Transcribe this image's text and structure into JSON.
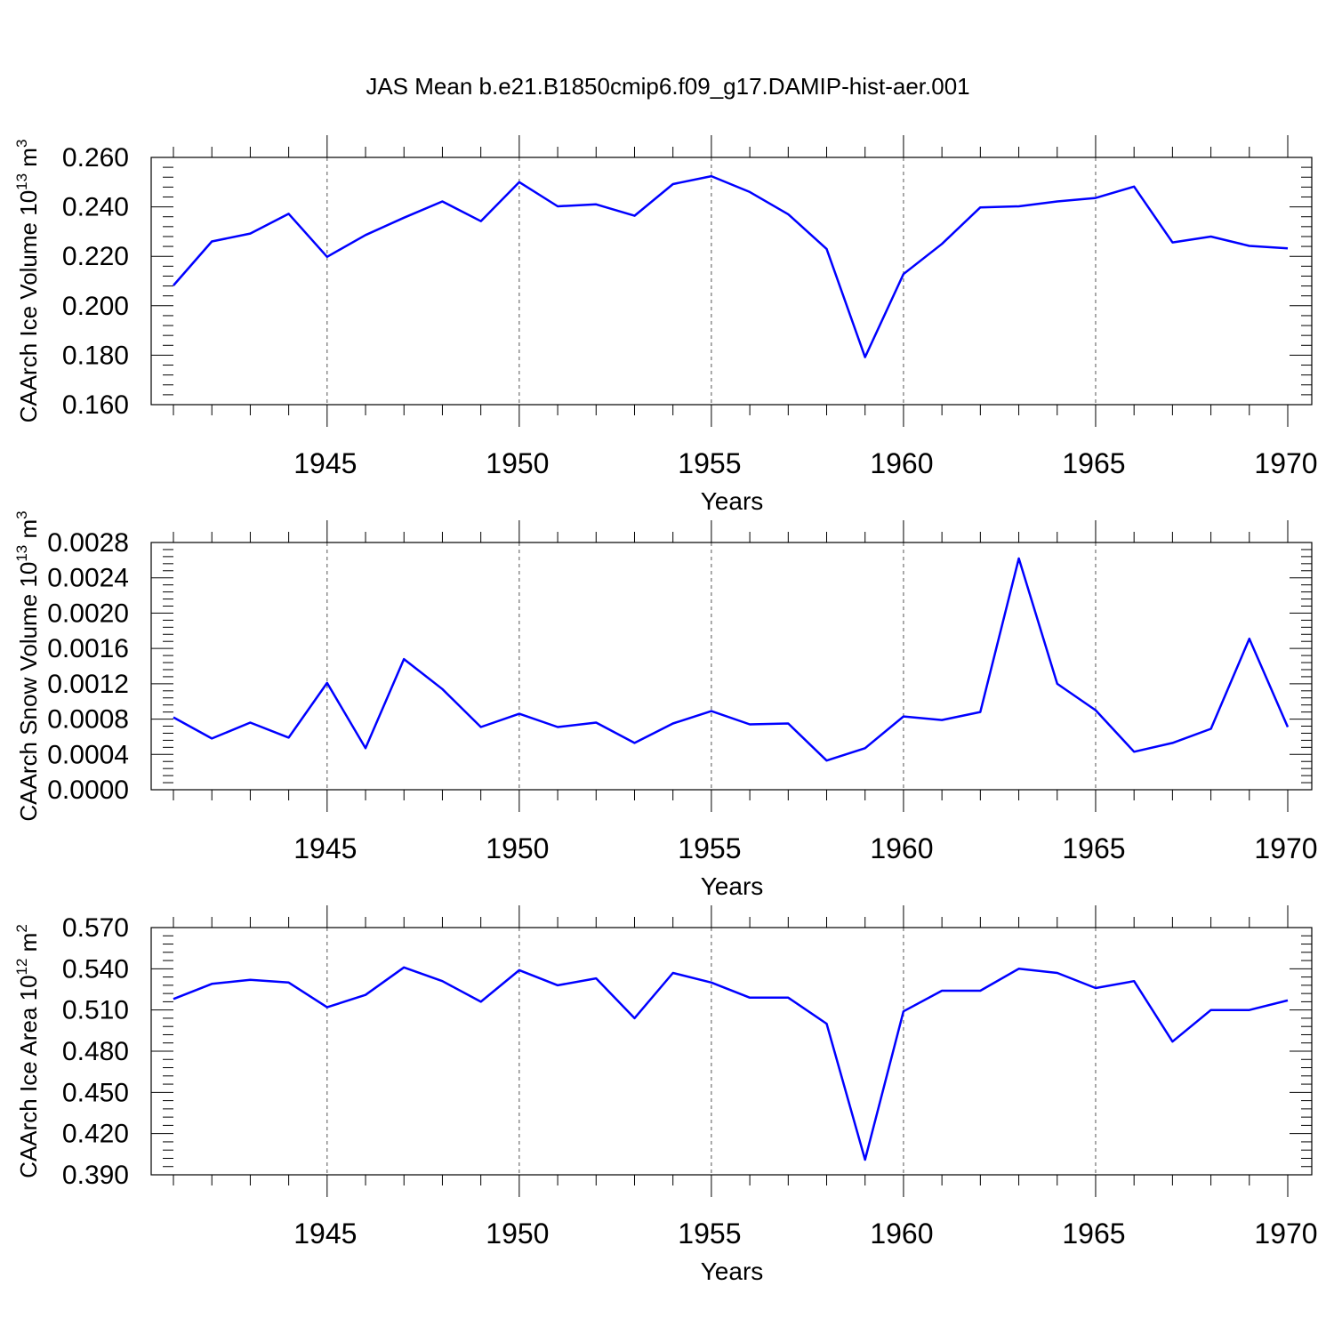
{
  "figure": {
    "title": "JAS Mean b.e21.B1850cmip6.f09_g17.DAMIP-hist-aer.001"
  },
  "chart_data": [
    {
      "type": "line",
      "ylabel_text": "CAArch Ice Volume 10",
      "ylabel_exp": "13",
      "ylabel_unit": " m",
      "ylabel_unit_exp": "3",
      "xlabel": "Years",
      "xlim": [
        1941,
        1970
      ],
      "ylim": [
        0.16,
        0.26
      ],
      "yticks": [
        0.16,
        0.18,
        0.2,
        0.22,
        0.24,
        0.26
      ],
      "ytick_labels": [
        "0.160",
        "0.180",
        "0.200",
        "0.220",
        "0.240",
        "0.260"
      ],
      "xticks": [
        1945,
        1950,
        1955,
        1960,
        1965,
        1970
      ],
      "xtick_labels": [
        "1945",
        "1950",
        "1955",
        "1960",
        "1965",
        "1970"
      ],
      "line_color": "#0000ff",
      "x": [
        1941,
        1942,
        1943,
        1944,
        1945,
        1946,
        1947,
        1948,
        1949,
        1950,
        1951,
        1952,
        1953,
        1954,
        1955,
        1956,
        1957,
        1958,
        1959,
        1960,
        1961,
        1962,
        1963,
        1964,
        1965,
        1966,
        1967,
        1968,
        1969,
        1970
      ],
      "values": [
        0.2082,
        0.226,
        0.2292,
        0.2372,
        0.2198,
        0.2286,
        0.2356,
        0.2422,
        0.2342,
        0.25,
        0.2402,
        0.241,
        0.2364,
        0.2492,
        0.2524,
        0.246,
        0.237,
        0.223,
        0.1792,
        0.2128,
        0.225,
        0.2398,
        0.2402,
        0.2422,
        0.2436,
        0.2482,
        0.2256,
        0.228,
        0.2242,
        0.2232
      ]
    },
    {
      "type": "line",
      "ylabel_text": "CAArch Snow Volume 10",
      "ylabel_exp": "13",
      "ylabel_unit": " m",
      "ylabel_unit_exp": "3",
      "xlabel": "Years",
      "xlim": [
        1941,
        1970
      ],
      "ylim": [
        0.0,
        0.0028
      ],
      "yticks": [
        0.0,
        0.0004,
        0.0008,
        0.0012,
        0.0016,
        0.002,
        0.0024,
        0.0028
      ],
      "ytick_labels": [
        "0.0000",
        "0.0004",
        "0.0008",
        "0.0012",
        "0.0016",
        "0.0020",
        "0.0024",
        "0.0028"
      ],
      "xticks": [
        1945,
        1950,
        1955,
        1960,
        1965,
        1970
      ],
      "xtick_labels": [
        "1945",
        "1950",
        "1955",
        "1960",
        "1965",
        "1970"
      ],
      "line_color": "#0000ff",
      "x": [
        1941,
        1942,
        1943,
        1944,
        1945,
        1946,
        1947,
        1948,
        1949,
        1950,
        1951,
        1952,
        1953,
        1954,
        1955,
        1956,
        1957,
        1958,
        1959,
        1960,
        1961,
        1962,
        1963,
        1964,
        1965,
        1966,
        1967,
        1968,
        1969,
        1970
      ],
      "values": [
        0.00082,
        0.00058,
        0.00076,
        0.00059,
        0.00121,
        0.00047,
        0.00148,
        0.00114,
        0.00071,
        0.00086,
        0.00071,
        0.00076,
        0.00053,
        0.00075,
        0.00089,
        0.00074,
        0.00075,
        0.00033,
        0.00047,
        0.00083,
        0.00079,
        0.00088,
        0.00262,
        0.0012,
        0.0009,
        0.00043,
        0.00053,
        0.00069,
        0.00171,
        0.00071
      ]
    },
    {
      "type": "line",
      "ylabel_text": "CAArch Ice Area 10",
      "ylabel_exp": "12",
      "ylabel_unit": " m",
      "ylabel_unit_exp": "2",
      "xlabel": "Years",
      "xlim": [
        1941,
        1970
      ],
      "ylim": [
        0.39,
        0.57
      ],
      "yticks": [
        0.39,
        0.42,
        0.45,
        0.48,
        0.51,
        0.54,
        0.57
      ],
      "ytick_labels": [
        "0.390",
        "0.420",
        "0.450",
        "0.480",
        "0.510",
        "0.540",
        "0.570"
      ],
      "xticks": [
        1945,
        1950,
        1955,
        1960,
        1965,
        1970
      ],
      "xtick_labels": [
        "1945",
        "1950",
        "1955",
        "1960",
        "1965",
        "1970"
      ],
      "line_color": "#0000ff",
      "x": [
        1941,
        1942,
        1943,
        1944,
        1945,
        1946,
        1947,
        1948,
        1949,
        1950,
        1951,
        1952,
        1953,
        1954,
        1955,
        1956,
        1957,
        1958,
        1959,
        1960,
        1961,
        1962,
        1963,
        1964,
        1965,
        1966,
        1967,
        1968,
        1969,
        1970
      ],
      "values": [
        0.518,
        0.529,
        0.532,
        0.53,
        0.512,
        0.521,
        0.541,
        0.531,
        0.516,
        0.539,
        0.528,
        0.533,
        0.504,
        0.537,
        0.53,
        0.519,
        0.519,
        0.5,
        0.401,
        0.509,
        0.524,
        0.524,
        0.54,
        0.537,
        0.526,
        0.531,
        0.487,
        0.51,
        0.51,
        0.517
      ]
    }
  ]
}
